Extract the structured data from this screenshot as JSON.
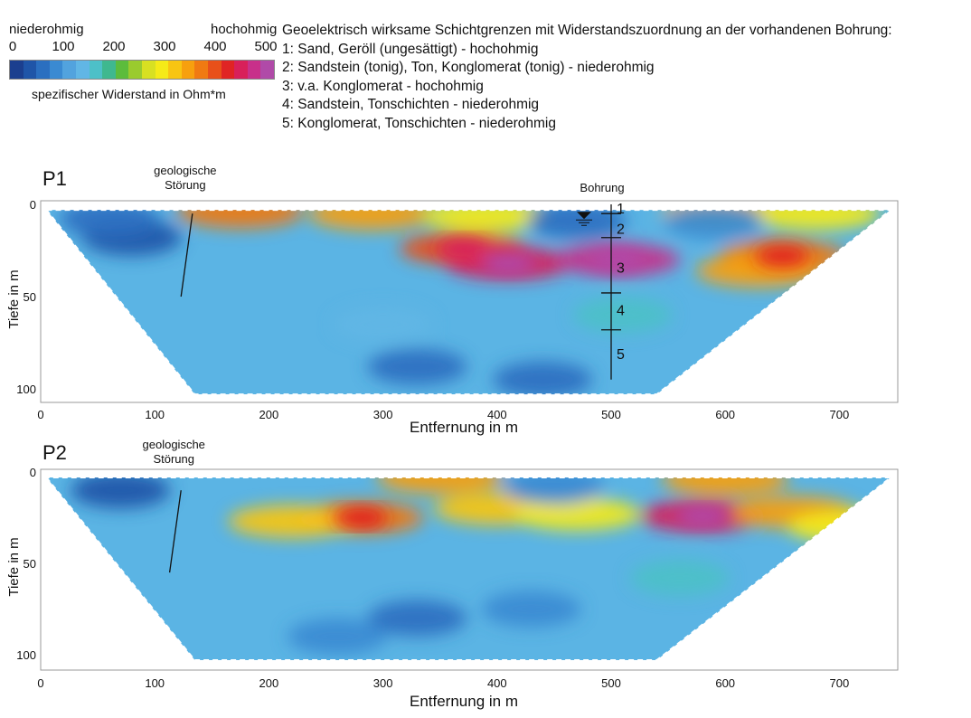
{
  "legend": {
    "low_label": "niederohmig",
    "high_label": "hochohmig",
    "scale_ticks": [
      "0",
      "100",
      "200",
      "300",
      "400",
      "500"
    ],
    "caption": "spezifischer Widerstand in Ohm*m",
    "colors": [
      "#1b3f8f",
      "#1f55a8",
      "#2b6fc0",
      "#3a8ad2",
      "#52a3de",
      "#61b6e5",
      "#4dc0c8",
      "#3fb88f",
      "#5cbc3c",
      "#9acb2e",
      "#d8e022",
      "#f5ea18",
      "#f8c512",
      "#f7a00e",
      "#f07a12",
      "#e8501a",
      "#e02424",
      "#d8205a",
      "#c8308a",
      "#b04aa8"
    ]
  },
  "description": {
    "heading": "Geoelektrisch wirksame Schichtgrenzen mit Widerstandszuordnung an der vorhandenen Bohrung:",
    "items": [
      "1: Sand, Geröll (ungesättigt) - hochohmig",
      "2: Sandstein (tonig), Ton, Konglomerat (tonig) - niederohmig",
      "3: v.a. Konglomerat - hochohmig",
      "4: Sandstein, Tonschichten - niederohmig",
      "5: Konglomerat, Tonschichten - niederohmig"
    ]
  },
  "chart_data": [
    {
      "type": "heatmap",
      "title": "P1",
      "xlabel": "Entfernung in m",
      "ylabel": "Tiefe in m",
      "xlim": [
        0,
        750
      ],
      "ylim": [
        0,
        105
      ],
      "x_ticks": [
        "0",
        "100",
        "200",
        "300",
        "400",
        "500",
        "600",
        "700"
      ],
      "y_ticks": [
        "0",
        "50",
        "100"
      ],
      "fault_label": [
        "geologische",
        "Störung"
      ],
      "fault_line": [
        [
          133,
          5
        ],
        [
          123,
          50
        ]
      ],
      "borehole_label": "Bohrung",
      "borehole_x": 500,
      "borehole_depth": 95,
      "layer_boundaries_m": [
        5,
        18,
        48,
        68
      ],
      "layer_labels": [
        {
          "label": "1",
          "depth": 2
        },
        {
          "label": "2",
          "depth": 13
        },
        {
          "label": "3",
          "depth": 34
        },
        {
          "label": "4",
          "depth": 57
        },
        {
          "label": "5",
          "depth": 81
        }
      ],
      "section_outline": [
        [
          5,
          3
        ],
        [
          135,
          103
        ],
        [
          540,
          103
        ],
        [
          745,
          3
        ]
      ],
      "anomalies_ohm_m": [
        {
          "x": 175,
          "depth": 4,
          "value": 360
        },
        {
          "x": 290,
          "depth": 5,
          "value": 330
        },
        {
          "x": 390,
          "depth": 6,
          "value": 300
        },
        {
          "x": 600,
          "depth": 4,
          "value": 320
        },
        {
          "x": 680,
          "depth": 5,
          "value": 290
        },
        {
          "x": 370,
          "depth": 24,
          "value": 400
        },
        {
          "x": 410,
          "depth": 32,
          "value": 450
        },
        {
          "x": 505,
          "depth": 30,
          "value": 480
        },
        {
          "x": 650,
          "depth": 28,
          "value": 380
        },
        {
          "x": 630,
          "depth": 36,
          "value": 330
        },
        {
          "x": 80,
          "depth": 18,
          "value": 20
        },
        {
          "x": 60,
          "depth": 8,
          "value": 40
        },
        {
          "x": 470,
          "depth": 9,
          "value": 60
        },
        {
          "x": 590,
          "depth": 9,
          "value": 70
        },
        {
          "x": 330,
          "depth": 88,
          "value": 50
        },
        {
          "x": 440,
          "depth": 95,
          "value": 40
        },
        {
          "x": 300,
          "depth": 65,
          "value": 130
        },
        {
          "x": 510,
          "depth": 60,
          "value": 150
        }
      ]
    },
    {
      "type": "heatmap",
      "title": "P2",
      "xlabel": "Entfernung in m",
      "ylabel": "Tiefe in m",
      "xlim": [
        0,
        750
      ],
      "ylim": [
        0,
        105
      ],
      "x_ticks": [
        "0",
        "100",
        "200",
        "300",
        "400",
        "500",
        "600",
        "700"
      ],
      "y_ticks": [
        "0",
        "50",
        "100"
      ],
      "fault_label": [
        "geologische",
        "Störung"
      ],
      "fault_line": [
        [
          123,
          10
        ],
        [
          113,
          55
        ]
      ],
      "section_outline": [
        [
          5,
          3
        ],
        [
          135,
          103
        ],
        [
          540,
          103
        ],
        [
          745,
          3
        ]
      ],
      "anomalies_ohm_m": [
        {
          "x": 280,
          "depth": 25,
          "value": 380
        },
        {
          "x": 220,
          "depth": 27,
          "value": 320
        },
        {
          "x": 400,
          "depth": 20,
          "value": 320
        },
        {
          "x": 470,
          "depth": 23,
          "value": 300
        },
        {
          "x": 580,
          "depth": 24,
          "value": 450
        },
        {
          "x": 660,
          "depth": 22,
          "value": 350
        },
        {
          "x": 710,
          "depth": 30,
          "value": 300
        },
        {
          "x": 350,
          "depth": 3,
          "value": 330
        },
        {
          "x": 600,
          "depth": 4,
          "value": 340
        },
        {
          "x": 70,
          "depth": 10,
          "value": 30
        },
        {
          "x": 450,
          "depth": 8,
          "value": 70
        },
        {
          "x": 330,
          "depth": 80,
          "value": 60
        },
        {
          "x": 430,
          "depth": 75,
          "value": 70
        },
        {
          "x": 260,
          "depth": 90,
          "value": 80
        },
        {
          "x": 560,
          "depth": 58,
          "value": 160
        }
      ]
    }
  ]
}
